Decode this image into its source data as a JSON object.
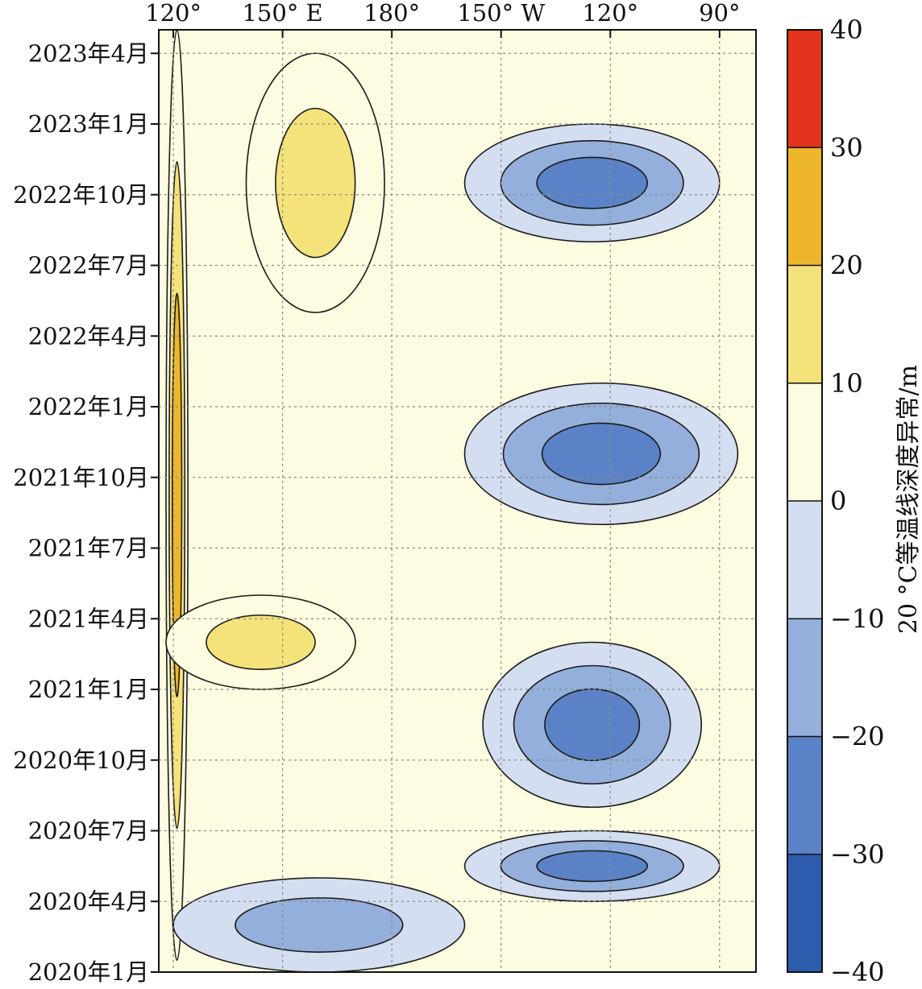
{
  "chart_data": {
    "type": "heatmap",
    "subtype": "hovmoller-contour",
    "x_axis": {
      "position": "top",
      "tick_labels": [
        "120°",
        "150° E",
        "180°",
        "150° W",
        "120°",
        "90°"
      ],
      "ticks_lon_east": [
        120,
        150,
        180,
        210,
        240,
        270
      ],
      "range_lon_east": [
        116,
        280
      ]
    },
    "y_axis": {
      "tick_labels": [
        "2020年1月",
        "2020年4月",
        "2020年7月",
        "2020年10月",
        "2021年1月",
        "2021年4月",
        "2021年7月",
        "2021年10月",
        "2022年1月",
        "2022年4月",
        "2022年7月",
        "2022年10月",
        "2023年1月",
        "2023年4月"
      ],
      "ticks_month_index": [
        0,
        3,
        6,
        9,
        12,
        15,
        18,
        21,
        24,
        27,
        30,
        33,
        36,
        39
      ],
      "range_month_index": [
        0,
        40
      ]
    },
    "grid": true,
    "colorbar": {
      "label": "20 °C等温线深度异常/m",
      "levels": [
        -40,
        -30,
        -20,
        -10,
        0,
        10,
        20,
        30,
        40
      ],
      "tick_labels": [
        "−40",
        "−30",
        "−20",
        "−10",
        "0",
        "10",
        "20",
        "30",
        "40"
      ],
      "colors": [
        "#2b5cad",
        "#5b82c6",
        "#94afdc",
        "#d3def0",
        "#fdfbe0",
        "#f4e27a",
        "#efb62c",
        "#e97b22"
      ],
      "top_color": "#e4331d"
    },
    "anomaly_features": [
      {
        "kind": "positive",
        "lon": [
          118,
          124
        ],
        "month": [
          0.5,
          40
        ],
        "peak": 30
      },
      {
        "kind": "positive",
        "lon": [
          140,
          178
        ],
        "month": [
          28,
          39
        ],
        "peak": 20
      },
      {
        "kind": "positive",
        "lon": [
          118,
          170
        ],
        "month": [
          12,
          16
        ],
        "peak": 25
      },
      {
        "kind": "negative",
        "lon": [
          200,
          270
        ],
        "month": [
          31,
          36
        ],
        "peak": -35
      },
      {
        "kind": "negative",
        "lon": [
          200,
          275
        ],
        "month": [
          19,
          25
        ],
        "peak": -35
      },
      {
        "kind": "negative",
        "lon": [
          205,
          265
        ],
        "month": [
          7,
          14
        ],
        "peak": -35
      },
      {
        "kind": "negative",
        "lon": [
          200,
          270
        ],
        "month": [
          3,
          6
        ],
        "peak": -30
      },
      {
        "kind": "negative",
        "lon": [
          120,
          200
        ],
        "month": [
          0,
          4
        ],
        "peak": -20
      }
    ]
  }
}
